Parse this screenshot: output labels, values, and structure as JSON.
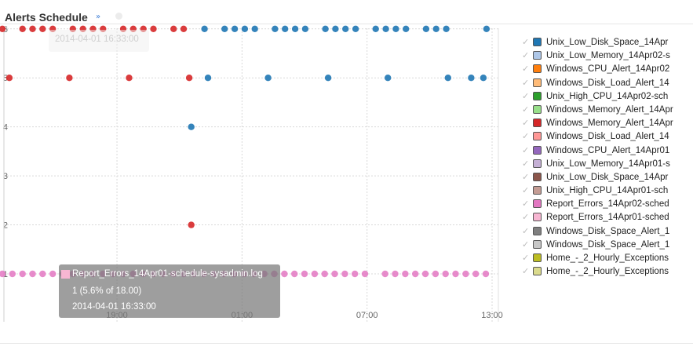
{
  "header": {
    "title": "Alerts Schedule",
    "collapse_icon": "double-chevron-down-icon"
  },
  "colors": {
    "blue": "#2f7cb6",
    "red": "#d6373a",
    "pink": "#e377c2",
    "tooltip_bg": "#787878"
  },
  "chart_data": {
    "type": "scatter",
    "title": "Alerts Schedule",
    "xlabel": "",
    "ylabel": "",
    "x_ticks": [
      "19:00",
      "01:00",
      "07:00",
      "13:00"
    ],
    "y_ticks": [
      1,
      2,
      3,
      4,
      5,
      6
    ],
    "xlim": [
      "2014-04-01 13:30",
      "2014-04-02 13:00"
    ],
    "ylim": [
      0.1,
      6.05
    ],
    "grid": true,
    "legend_position": "right",
    "series": [
      {
        "name": "Unix_Low_Disk_Space_14Apr",
        "color": "#1f77b4",
        "points": [
          {
            "x": "2014-04-01 23:12",
            "y": 6
          },
          {
            "x": "2014-04-02 00:10",
            "y": 6
          },
          {
            "x": "2014-04-02 00:39",
            "y": 6
          },
          {
            "x": "2014-04-02 01:08",
            "y": 6
          },
          {
            "x": "2014-04-02 01:37",
            "y": 6
          },
          {
            "x": "2014-04-02 02:35",
            "y": 6
          },
          {
            "x": "2014-04-02 03:04",
            "y": 6
          },
          {
            "x": "2014-04-02 03:33",
            "y": 6
          },
          {
            "x": "2014-04-02 04:02",
            "y": 6
          },
          {
            "x": "2014-04-02 05:00",
            "y": 6
          },
          {
            "x": "2014-04-02 05:29",
            "y": 6
          },
          {
            "x": "2014-04-02 05:58",
            "y": 6
          },
          {
            "x": "2014-04-02 06:27",
            "y": 6
          },
          {
            "x": "2014-04-02 07:25",
            "y": 6
          },
          {
            "x": "2014-04-02 07:54",
            "y": 6
          },
          {
            "x": "2014-04-02 08:23",
            "y": 6
          },
          {
            "x": "2014-04-02 08:52",
            "y": 6
          },
          {
            "x": "2014-04-02 09:50",
            "y": 6
          },
          {
            "x": "2014-04-02 10:19",
            "y": 6
          },
          {
            "x": "2014-04-02 10:48",
            "y": 6
          },
          {
            "x": "2014-04-02 12:44",
            "y": 6
          },
          {
            "x": "2014-04-01 23:22",
            "y": 5
          },
          {
            "x": "2014-04-02 02:15",
            "y": 5
          },
          {
            "x": "2014-04-02 05:08",
            "y": 5
          },
          {
            "x": "2014-04-02 08:00",
            "y": 5
          },
          {
            "x": "2014-04-02 10:53",
            "y": 5
          },
          {
            "x": "2014-04-02 12:00",
            "y": 5
          },
          {
            "x": "2014-04-02 12:35",
            "y": 5
          },
          {
            "x": "2014-04-01 22:34",
            "y": 4
          }
        ]
      },
      {
        "name": "Windows_Memory_Alert_14Apr",
        "color": "#d62728",
        "points": [
          {
            "x": "2014-04-01 13:30",
            "y": 6
          },
          {
            "x": "2014-04-01 14:28",
            "y": 6
          },
          {
            "x": "2014-04-01 14:57",
            "y": 6
          },
          {
            "x": "2014-04-01 15:26",
            "y": 6
          },
          {
            "x": "2014-04-01 15:55",
            "y": 6
          },
          {
            "x": "2014-04-01 16:53",
            "y": 6
          },
          {
            "x": "2014-04-01 17:22",
            "y": 6
          },
          {
            "x": "2014-04-01 17:51",
            "y": 6
          },
          {
            "x": "2014-04-01 18:20",
            "y": 6
          },
          {
            "x": "2014-04-01 19:18",
            "y": 6
          },
          {
            "x": "2014-04-01 19:47",
            "y": 6
          },
          {
            "x": "2014-04-01 20:16",
            "y": 6
          },
          {
            "x": "2014-04-01 20:45",
            "y": 6
          },
          {
            "x": "2014-04-01 21:43",
            "y": 6
          },
          {
            "x": "2014-04-01 22:12",
            "y": 6
          },
          {
            "x": "2014-04-01 13:50",
            "y": 5
          },
          {
            "x": "2014-04-01 16:43",
            "y": 5
          },
          {
            "x": "2014-04-01 19:35",
            "y": 5
          },
          {
            "x": "2014-04-01 22:28",
            "y": 5
          },
          {
            "x": "2014-04-01 22:34",
            "y": 2
          }
        ]
      },
      {
        "name": "Report_Errors_14Apr01-schedule",
        "color": "#e377c2",
        "points": [
          {
            "x": "2014-04-01 13:30",
            "y": 1
          },
          {
            "x": "2014-04-01 13:59",
            "y": 1
          },
          {
            "x": "2014-04-01 14:28",
            "y": 1
          },
          {
            "x": "2014-04-01 14:57",
            "y": 1
          },
          {
            "x": "2014-04-01 15:26",
            "y": 1
          },
          {
            "x": "2014-04-01 15:55",
            "y": 1
          },
          {
            "x": "2014-04-01 16:24",
            "y": 1
          },
          {
            "x": "2014-04-01 16:53",
            "y": 1
          },
          {
            "x": "2014-04-01 17:22",
            "y": 1
          },
          {
            "x": "2014-04-01 17:51",
            "y": 1
          },
          {
            "x": "2014-04-01 18:20",
            "y": 1
          },
          {
            "x": "2014-04-01 18:49",
            "y": 1
          },
          {
            "x": "2014-04-01 19:18",
            "y": 1
          },
          {
            "x": "2014-04-01 19:47",
            "y": 1
          },
          {
            "x": "2014-04-01 20:16",
            "y": 1
          },
          {
            "x": "2014-04-01 20:45",
            "y": 1
          },
          {
            "x": "2014-04-01 21:14",
            "y": 1
          },
          {
            "x": "2014-04-01 21:43",
            "y": 1
          },
          {
            "x": "2014-04-01 22:12",
            "y": 1
          },
          {
            "x": "2014-04-01 22:41",
            "y": 1
          },
          {
            "x": "2014-04-01 23:10",
            "y": 1
          },
          {
            "x": "2014-04-01 23:39",
            "y": 1
          },
          {
            "x": "2014-04-02 00:08",
            "y": 1
          },
          {
            "x": "2014-04-02 00:37",
            "y": 1
          },
          {
            "x": "2014-04-02 01:06",
            "y": 1
          },
          {
            "x": "2014-04-02 01:35",
            "y": 1
          },
          {
            "x": "2014-04-02 02:04",
            "y": 1
          },
          {
            "x": "2014-04-02 02:33",
            "y": 1
          },
          {
            "x": "2014-04-02 03:02",
            "y": 1
          },
          {
            "x": "2014-04-02 03:31",
            "y": 1
          },
          {
            "x": "2014-04-02 04:00",
            "y": 1
          },
          {
            "x": "2014-04-02 04:29",
            "y": 1
          },
          {
            "x": "2014-04-02 04:58",
            "y": 1
          },
          {
            "x": "2014-04-02 05:27",
            "y": 1
          },
          {
            "x": "2014-04-02 05:56",
            "y": 1
          },
          {
            "x": "2014-04-02 06:25",
            "y": 1
          },
          {
            "x": "2014-04-02 06:54",
            "y": 1
          },
          {
            "x": "2014-04-02 07:52",
            "y": 1
          },
          {
            "x": "2014-04-02 08:21",
            "y": 1
          },
          {
            "x": "2014-04-02 08:50",
            "y": 1
          },
          {
            "x": "2014-04-02 09:19",
            "y": 1
          },
          {
            "x": "2014-04-02 09:48",
            "y": 1
          },
          {
            "x": "2014-04-02 10:17",
            "y": 1
          },
          {
            "x": "2014-04-02 10:46",
            "y": 1
          },
          {
            "x": "2014-04-02 11:15",
            "y": 1
          },
          {
            "x": "2014-04-02 11:44",
            "y": 1
          },
          {
            "x": "2014-04-02 12:13",
            "y": 1
          },
          {
            "x": "2014-04-02 12:42",
            "y": 1
          }
        ]
      }
    ]
  },
  "legend": {
    "items": [
      {
        "label": "Unix_Low_Disk_Space_14Apr",
        "color": "#1f77b4"
      },
      {
        "label": "Unix_Low_Memory_14Apr02-s",
        "color": "#aec7e8"
      },
      {
        "label": "Windows_CPU_Alert_14Apr02",
        "color": "#ff7f0e"
      },
      {
        "label": "Windows_Disk_Load_Alert_14",
        "color": "#ffbb78"
      },
      {
        "label": "Unix_High_CPU_14Apr02-sch",
        "color": "#2ca02c"
      },
      {
        "label": "Windows_Memory_Alert_14Apr",
        "color": "#98df8a"
      },
      {
        "label": "Windows_Memory_Alert_14Apr",
        "color": "#d62728"
      },
      {
        "label": "Windows_Disk_Load_Alert_14",
        "color": "#ff9896"
      },
      {
        "label": "Windows_CPU_Alert_14Apr01",
        "color": "#9467bd"
      },
      {
        "label": "Unix_Low_Memory_14Apr01-s",
        "color": "#c5b0d5"
      },
      {
        "label": "Unix_Low_Disk_Space_14Apr",
        "color": "#8c564b"
      },
      {
        "label": "Unix_High_CPU_14Apr01-sch",
        "color": "#c49c94"
      },
      {
        "label": "Report_Errors_14Apr02-sched",
        "color": "#e377c2"
      },
      {
        "label": "Report_Errors_14Apr01-sched",
        "color": "#f7b6d2"
      },
      {
        "label": "Windows_Disk_Space_Alert_1",
        "color": "#7f7f7f"
      },
      {
        "label": "Windows_Disk_Space_Alert_1",
        "color": "#c7c7c7"
      },
      {
        "label": "Home_-_2_Hourly_Exceptions",
        "color": "#bcbd22"
      },
      {
        "label": "Home_-_2_Hourly_Exceptions",
        "color": "#dbdb8d"
      }
    ]
  },
  "tooltip": {
    "series": "Report_Errors_14Apr01-schedule-sysadmin.log",
    "value": "1 (5.6% of 18.00)",
    "time": "2014-04-01 16:33:00",
    "color": "#f7b6d2"
  },
  "ghost_tooltip": {
    "time": "2014-04-01 16:33:00"
  }
}
